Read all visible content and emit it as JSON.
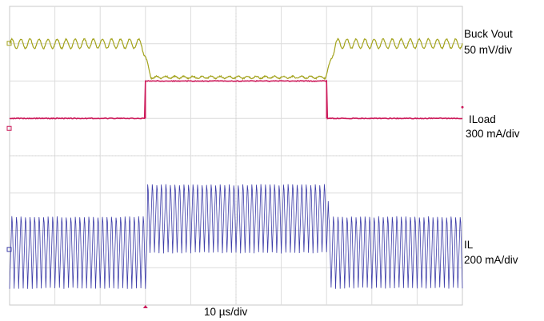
{
  "chart_data": {
    "type": "line",
    "title": "",
    "grid": true,
    "x_divisions": 10,
    "y_divisions": 8,
    "timebase": "10 µs/div",
    "load_step_start_div": 3,
    "load_step_end_div": 7,
    "series": [
      {
        "name": "Buck Vout",
        "scale": "50 mV/div",
        "color": "#a3a31c",
        "levels_div": {
          "light_load": 7.0,
          "heavy_load": 6.1
        },
        "ripple_pp_div": 0.25,
        "ripple_cycles_per_div": 5
      },
      {
        "name": "ILoad",
        "scale": "300 mA/div",
        "color": "#cc1a5a",
        "levels_div": {
          "light_load": 5.0,
          "heavy_load": 6.0
        }
      },
      {
        "name": "IL",
        "scale": "200 mA/div",
        "color": "#3c3ca8",
        "levels_div": {
          "light_load_center": 1.5,
          "heavy_load_center": 2.4
        },
        "ripple_pp_div": {
          "light_load": 2.1,
          "heavy_load": 2.0
        },
        "ripple_cycles_per_div": 10
      }
    ]
  },
  "labels": {
    "vout_name": "Buck Vout",
    "vout_scale": "50 mV/div",
    "iload_name": "ILoad",
    "iload_scale": "300 mA/div",
    "il_name": "IL",
    "il_scale": "200 mA/div",
    "timebase": "10 µs/div"
  }
}
